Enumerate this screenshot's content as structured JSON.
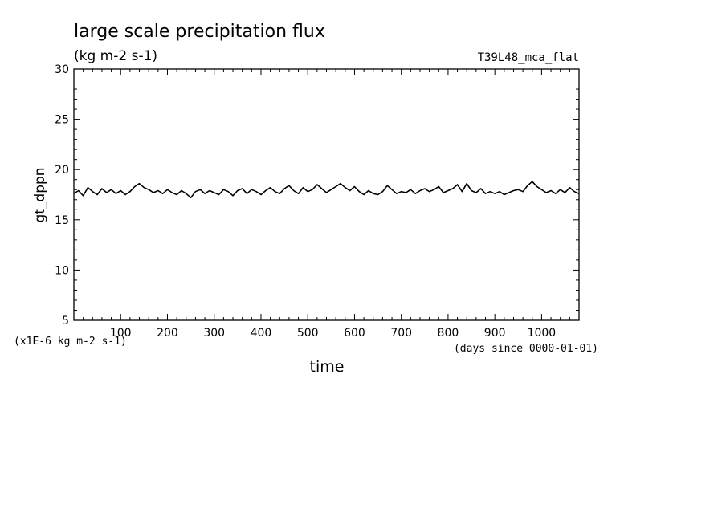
{
  "chart_data": {
    "type": "line",
    "title": "large scale precipitation flux",
    "subtitle": "(kg m-2 s-1)",
    "run_label": "T39L48_mca_flat",
    "xlabel": "time",
    "x_units": "(days since 0000-01-01)",
    "ylabel": "gt_dppn",
    "y_units": "(x1E-6 kg m-2 s-1)",
    "xlim": [
      0,
      1080
    ],
    "ylim": [
      5,
      30
    ],
    "x_ticks": [
      "100",
      "200",
      "300",
      "400",
      "500",
      "600",
      "700",
      "800",
      "900",
      "1000"
    ],
    "y_ticks": [
      "5",
      "10",
      "15",
      "20",
      "25",
      "30"
    ],
    "grid": false,
    "series": [
      {
        "x": [
          0,
          10,
          20,
          30,
          40,
          50,
          60,
          70,
          80,
          90,
          100,
          110,
          120,
          130,
          140,
          150,
          160,
          170,
          180,
          190,
          200,
          210,
          220,
          230,
          240,
          250,
          260,
          270,
          280,
          290,
          300,
          310,
          320,
          330,
          340,
          350,
          360,
          370,
          380,
          390,
          400,
          410,
          420,
          430,
          440,
          450,
          460,
          470,
          480,
          490,
          500,
          510,
          520,
          530,
          540,
          550,
          560,
          570,
          580,
          590,
          600,
          610,
          620,
          630,
          640,
          650,
          660,
          670,
          680,
          690,
          700,
          710,
          720,
          730,
          740,
          750,
          760,
          770,
          780,
          790,
          800,
          810,
          820,
          830,
          840,
          850,
          860,
          870,
          880,
          890,
          900,
          910,
          920,
          930,
          940,
          950,
          960,
          970,
          980,
          990,
          1000,
          1010,
          1020,
          1030,
          1040,
          1050,
          1060,
          1070,
          1080
        ],
        "y": [
          17.6,
          17.9,
          17.4,
          18.2,
          17.8,
          17.5,
          18.1,
          17.7,
          18.0,
          17.6,
          17.9,
          17.5,
          17.8,
          18.3,
          18.6,
          18.2,
          18.0,
          17.7,
          17.9,
          17.6,
          18.0,
          17.7,
          17.5,
          17.9,
          17.6,
          17.2,
          17.8,
          18.0,
          17.6,
          17.9,
          17.7,
          17.5,
          18.0,
          17.8,
          17.4,
          17.9,
          18.1,
          17.6,
          18.0,
          17.8,
          17.5,
          17.9,
          18.2,
          17.8,
          17.6,
          18.1,
          18.4,
          17.9,
          17.6,
          18.2,
          17.8,
          18.0,
          18.5,
          18.1,
          17.7,
          18.0,
          18.3,
          18.6,
          18.2,
          17.9,
          18.3,
          17.8,
          17.5,
          17.9,
          17.6,
          17.5,
          17.8,
          18.4,
          18.0,
          17.6,
          17.8,
          17.7,
          18.0,
          17.6,
          17.9,
          18.1,
          17.8,
          18.0,
          18.3,
          17.7,
          17.9,
          18.1,
          18.5,
          17.8,
          18.6,
          17.9,
          17.7,
          18.1,
          17.6,
          17.8,
          17.6,
          17.8,
          17.5,
          17.7,
          17.9,
          18.0,
          17.8,
          18.4,
          18.8,
          18.3,
          18.0,
          17.7,
          17.9,
          17.6,
          18.0,
          17.7,
          18.2,
          17.8,
          17.6
        ]
      }
    ]
  }
}
